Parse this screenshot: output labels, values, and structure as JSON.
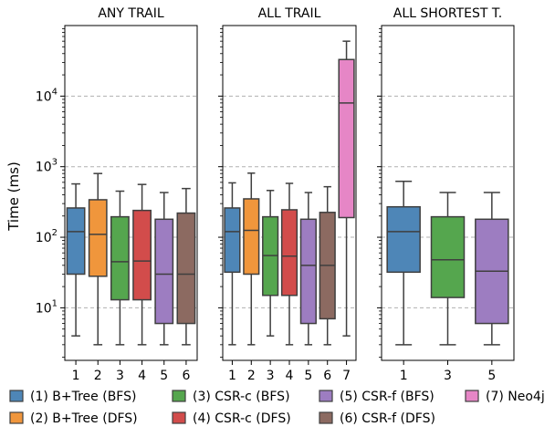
{
  "chart_data": {
    "type": "box",
    "ylabel": "Time (ms)",
    "yscale": "log",
    "ylim": [
      1.8,
      100000
    ],
    "y_ticks": [
      {
        "value": 10,
        "base": "10",
        "exp": "1"
      },
      {
        "value": 100,
        "base": "10",
        "exp": "2"
      },
      {
        "value": 1000,
        "base": "10",
        "exp": "3"
      },
      {
        "value": 10000,
        "base": "10",
        "exp": "4"
      }
    ],
    "grid": "horizontal dashed at major ticks",
    "legend_position": "bottom",
    "colors": {
      "1": "#4e86b7",
      "2": "#f0963c",
      "3": "#55a64e",
      "4": "#d24c4b",
      "5": "#9d7dc1",
      "6": "#8c6a61",
      "7": "#e686c6"
    },
    "legend": [
      {
        "key": "1",
        "label": "(1) B+Tree (BFS)"
      },
      {
        "key": "2",
        "label": "(2) B+Tree (DFS)"
      },
      {
        "key": "3",
        "label": "(3) CSR-c (BFS)"
      },
      {
        "key": "4",
        "label": "(4) CSR-c (DFS)"
      },
      {
        "key": "5",
        "label": "(5) CSR-f (BFS)"
      },
      {
        "key": "6",
        "label": "(6) CSR-f (DFS)"
      },
      {
        "key": "7",
        "label": "(7) Neo4j"
      }
    ],
    "panels": [
      {
        "title": "ANY TRAIL",
        "categories": [
          "1",
          "2",
          "3",
          "4",
          "5",
          "6"
        ],
        "boxes": [
          {
            "key": "1",
            "min": 4,
            "q1": 30,
            "median": 120,
            "q3": 260,
            "max": 570
          },
          {
            "key": "2",
            "min": 3,
            "q1": 28,
            "median": 110,
            "q3": 340,
            "max": 800
          },
          {
            "key": "3",
            "min": 3,
            "q1": 13,
            "median": 45,
            "q3": 195,
            "max": 450
          },
          {
            "key": "4",
            "min": 3,
            "q1": 13,
            "median": 46,
            "q3": 240,
            "max": 560
          },
          {
            "key": "5",
            "min": 3,
            "q1": 6,
            "median": 30,
            "q3": 180,
            "max": 430
          },
          {
            "key": "6",
            "min": 3,
            "q1": 6,
            "median": 30,
            "q3": 220,
            "max": 490
          }
        ]
      },
      {
        "title": "ALL TRAIL",
        "categories": [
          "1",
          "2",
          "3",
          "4",
          "5",
          "6",
          "7"
        ],
        "boxes": [
          {
            "key": "1",
            "min": 3,
            "q1": 32,
            "median": 120,
            "q3": 260,
            "max": 590
          },
          {
            "key": "2",
            "min": 3,
            "q1": 30,
            "median": 125,
            "q3": 350,
            "max": 810
          },
          {
            "key": "3",
            "min": 4,
            "q1": 15,
            "median": 55,
            "q3": 195,
            "max": 460
          },
          {
            "key": "4",
            "min": 3,
            "q1": 15,
            "median": 54,
            "q3": 245,
            "max": 580
          },
          {
            "key": "5",
            "min": 3,
            "q1": 6,
            "median": 40,
            "q3": 180,
            "max": 430
          },
          {
            "key": "6",
            "min": 3,
            "q1": 7,
            "median": 40,
            "q3": 225,
            "max": 520
          },
          {
            "key": "7",
            "min": 4,
            "q1": 190,
            "median": 8000,
            "q3": 33000,
            "max": 60000
          }
        ]
      },
      {
        "title": "ALL SHORTEST T.",
        "categories": [
          "1",
          "3",
          "5"
        ],
        "boxes": [
          {
            "key": "1",
            "min": 3,
            "q1": 32,
            "median": 120,
            "q3": 270,
            "max": 620
          },
          {
            "key": "3",
            "min": 3,
            "q1": 14,
            "median": 48,
            "q3": 195,
            "max": 430
          },
          {
            "key": "5",
            "min": 3,
            "q1": 6,
            "median": 33,
            "q3": 180,
            "max": 430
          }
        ]
      }
    ]
  }
}
